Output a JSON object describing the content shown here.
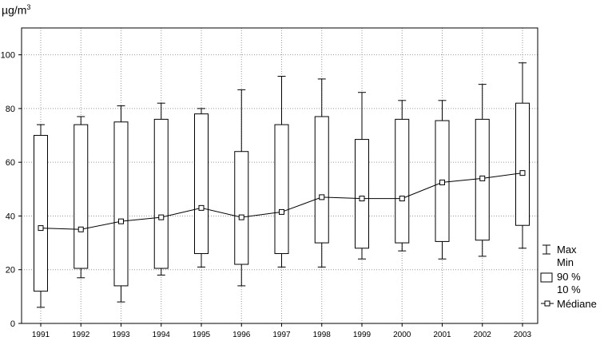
{
  "chart_data": {
    "type": "box",
    "ylabel": "µg/m",
    "ylabel_superscript": "3",
    "ylim": [
      0,
      110
    ],
    "yticks": [
      0,
      20,
      40,
      60,
      80,
      100
    ],
    "grid": true,
    "categories": [
      "1991",
      "1992",
      "1993",
      "1994",
      "1995",
      "1996",
      "1997",
      "1998",
      "1999",
      "2000",
      "2001",
      "2002",
      "2003"
    ],
    "max": [
      74,
      77,
      81,
      82,
      80,
      87,
      92,
      91,
      86,
      83,
      83,
      89,
      97
    ],
    "p90": [
      70,
      74,
      75,
      76,
      78,
      64,
      74,
      77,
      68.5,
      76,
      75.5,
      76,
      82
    ],
    "median": [
      35.5,
      35,
      38,
      39.5,
      43,
      39.5,
      41.5,
      47,
      46.5,
      46.5,
      52.5,
      54,
      56
    ],
    "p10": [
      12,
      20.5,
      14,
      20.5,
      26,
      22,
      26,
      30,
      28,
      30,
      30.5,
      31,
      36.5
    ],
    "min": [
      6,
      17,
      8,
      18,
      21,
      14,
      21,
      21,
      24,
      27,
      24,
      25,
      28
    ],
    "legend": {
      "position": "bottom-right",
      "max": "Max",
      "min": "Min",
      "p90": "90 %",
      "p10": "10 %",
      "median": "Médiane"
    }
  }
}
